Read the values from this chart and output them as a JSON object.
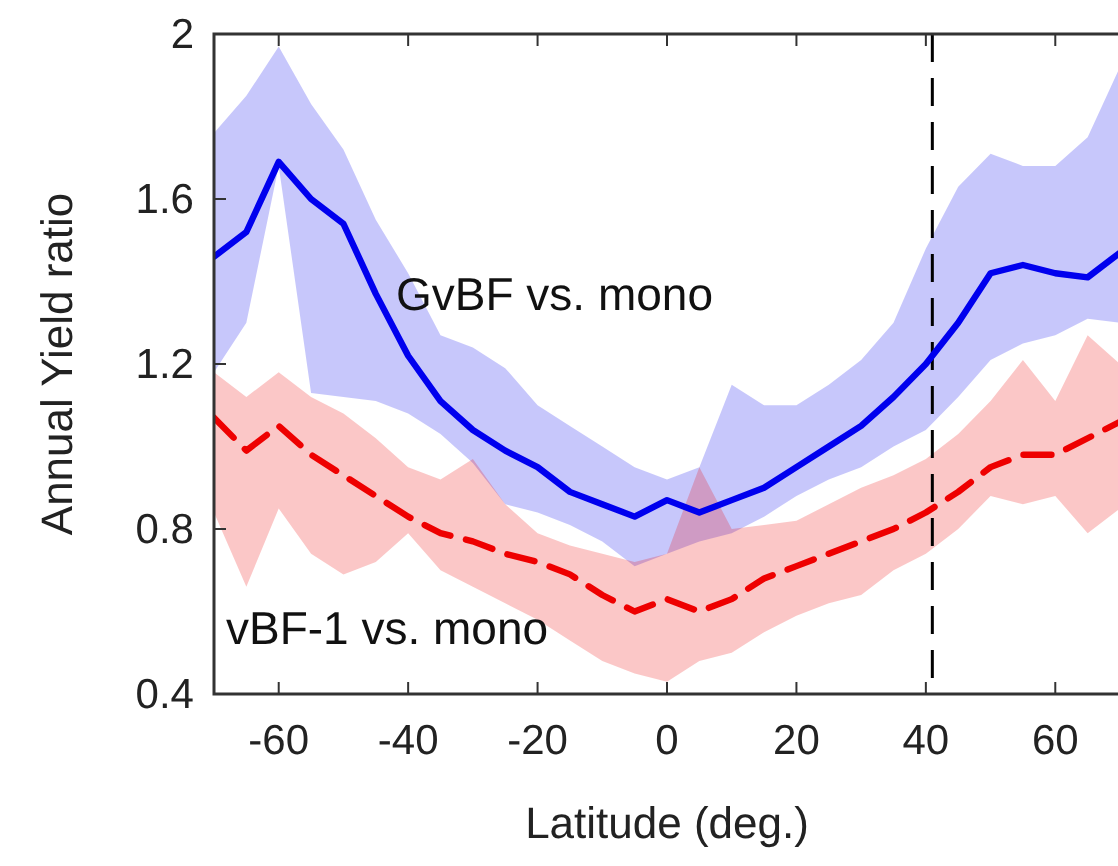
{
  "chart_data": {
    "type": "line",
    "xlabel": "Latitude (deg.)",
    "ylabel": "Annual Yield ratio",
    "x": [
      -70,
      -65,
      -60,
      -55,
      -50,
      -45,
      -40,
      -35,
      -30,
      -25,
      -20,
      -15,
      -10,
      -5,
      0,
      5,
      10,
      15,
      20,
      25,
      30,
      35,
      40,
      45,
      50,
      55,
      60,
      65,
      70
    ],
    "series": [
      {
        "name": "GvBF vs. mono",
        "color": "#0000ee",
        "line_style": "solid",
        "values": [
          1.46,
          1.52,
          1.69,
          1.6,
          1.54,
          1.37,
          1.22,
          1.11,
          1.04,
          0.99,
          0.95,
          0.89,
          0.86,
          0.83,
          0.87,
          0.84,
          0.87,
          0.9,
          0.95,
          1.0,
          1.05,
          1.12,
          1.2,
          1.3,
          1.42,
          1.44,
          1.42,
          1.41,
          1.47
        ],
        "upper": [
          1.76,
          1.85,
          1.97,
          1.83,
          1.72,
          1.55,
          1.42,
          1.27,
          1.24,
          1.19,
          1.1,
          1.05,
          1.0,
          0.95,
          0.92,
          0.95,
          1.15,
          1.1,
          1.1,
          1.15,
          1.21,
          1.3,
          1.48,
          1.63,
          1.71,
          1.68,
          1.68,
          1.75,
          1.92
        ],
        "lower": [
          1.18,
          1.3,
          1.68,
          1.13,
          1.12,
          1.11,
          1.08,
          1.03,
          0.96,
          0.86,
          0.84,
          0.81,
          0.77,
          0.71,
          0.74,
          0.77,
          0.79,
          0.83,
          0.88,
          0.92,
          0.95,
          1.0,
          1.04,
          1.12,
          1.21,
          1.25,
          1.27,
          1.31,
          1.3
        ]
      },
      {
        "name": "vBF-1 vs. mono",
        "color": "#ee0000",
        "line_style": "dashed",
        "values": [
          1.07,
          0.99,
          1.05,
          0.98,
          0.93,
          0.88,
          0.83,
          0.79,
          0.77,
          0.74,
          0.72,
          0.69,
          0.64,
          0.6,
          0.63,
          0.6,
          0.63,
          0.68,
          0.71,
          0.74,
          0.77,
          0.8,
          0.84,
          0.89,
          0.95,
          0.98,
          0.98,
          1.02,
          1.06
        ],
        "upper": [
          1.18,
          1.12,
          1.18,
          1.12,
          1.08,
          1.02,
          0.95,
          0.92,
          0.97,
          0.86,
          0.79,
          0.76,
          0.74,
          0.72,
          0.74,
          0.95,
          0.8,
          0.81,
          0.82,
          0.86,
          0.9,
          0.93,
          0.97,
          1.03,
          1.11,
          1.21,
          1.11,
          1.27,
          1.2
        ],
        "lower": [
          0.84,
          0.66,
          0.85,
          0.74,
          0.69,
          0.72,
          0.79,
          0.7,
          0.66,
          0.62,
          0.58,
          0.53,
          0.48,
          0.45,
          0.43,
          0.48,
          0.5,
          0.55,
          0.59,
          0.62,
          0.64,
          0.7,
          0.74,
          0.8,
          0.88,
          0.86,
          0.88,
          0.79,
          0.85
        ]
      }
    ],
    "xlim": [
      -70,
      70
    ],
    "ylim": [
      0.4,
      2
    ],
    "xticks": [
      -60,
      -40,
      -20,
      0,
      20,
      40,
      60
    ],
    "yticks": [
      0.4,
      0.8,
      1.2,
      1.6,
      2
    ],
    "ref_lines": [
      {
        "axis": "x",
        "value": 41,
        "line_style": "dashed",
        "color": "#000000"
      }
    ],
    "grid": false,
    "marker": "none"
  }
}
